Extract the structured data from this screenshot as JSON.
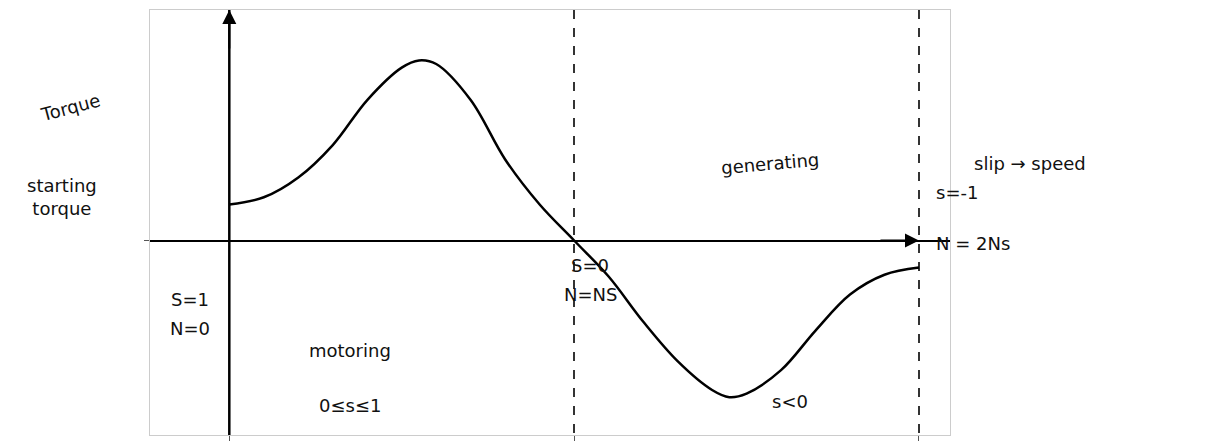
{
  "chart_data": {
    "type": "line",
    "x": [
      1,
      0.9,
      0.8,
      0.7,
      0.6,
      0.5,
      0.45,
      0.4,
      0.3,
      0.2,
      0.1,
      0,
      -0.1,
      -0.2,
      -0.3,
      -0.4,
      -0.45,
      -0.5,
      -0.6,
      -0.7,
      -0.8,
      -0.9,
      -1
    ],
    "values": [
      0.2,
      0.24,
      0.35,
      0.53,
      0.78,
      0.96,
      1.0,
      0.98,
      0.78,
      0.45,
      0.2,
      0,
      -0.2,
      -0.45,
      -0.67,
      -0.83,
      -0.87,
      -0.85,
      -0.72,
      -0.5,
      -0.3,
      -0.19,
      -0.15
    ],
    "color": "#000000",
    "xlim": [
      1.23,
      -1.09
    ],
    "xticks": [
      1,
      0,
      -1
    ],
    "ylim": [
      -1.08,
      1.28
    ],
    "yticks": [
      0
    ],
    "grid": true,
    "tick_labels": false,
    "annotations": [
      "Torque",
      "starting torque",
      "S=1",
      "N=0",
      "motoring",
      "0≤s≤1",
      "generating",
      "S=0",
      "N=NS",
      "slip → speed",
      "s=-1",
      "N = 2Ns",
      "s<0"
    ]
  }
}
